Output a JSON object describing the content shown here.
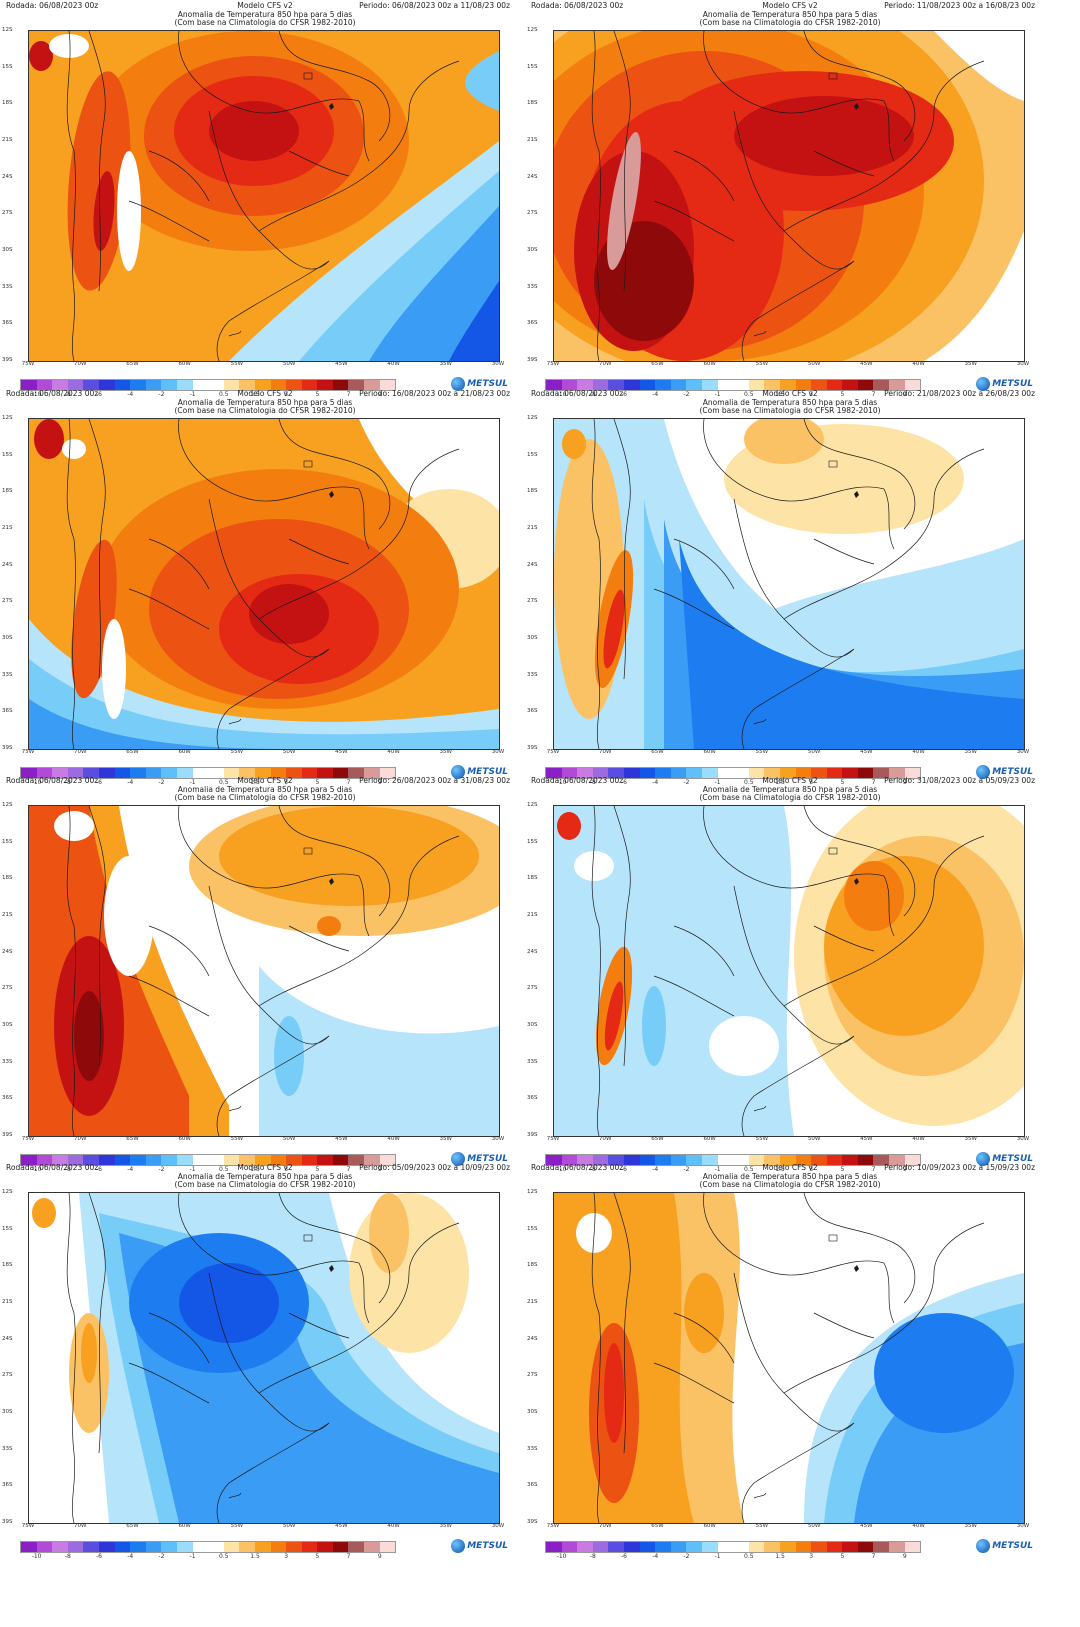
{
  "colorbar": {
    "ticks": [
      "-10",
      "-8",
      "-6",
      "-4",
      "-2",
      "-1",
      "0.5",
      "1.5",
      "3",
      "5",
      "7",
      "9"
    ],
    "colors": [
      "#8a1fc8",
      "#b24ad8",
      "#c87be3",
      "#9d6be0",
      "#5a4ee0",
      "#2e36d8",
      "#1456e6",
      "#1c7cf0",
      "#3a9cf4",
      "#5ec0fa",
      "#9adcfc",
      "#ffffff",
      "#ffffff",
      "#fde3a6",
      "#fbc265",
      "#f8a020",
      "#f47d10",
      "#ec5212",
      "#e42a14",
      "#c41212",
      "#8e0a0a",
      "#a85a5a",
      "#d99a9a",
      "#fbdada"
    ]
  },
  "lat_labels": [
    "12S",
    "15S",
    "18S",
    "21S",
    "24S",
    "27S",
    "30S",
    "33S",
    "36S",
    "39S"
  ],
  "lon_labels": [
    "75W",
    "70W",
    "65W",
    "60W",
    "55W",
    "50W",
    "45W",
    "40W",
    "35W",
    "30W"
  ],
  "brand": "METSUL",
  "panels": [
    {
      "rodada": "Rodada: 06/08/2023 00z",
      "modelo": "Modelo CFS v2",
      "periodo": "Periodo: 06/08/2023 00z a 11/08/23 00z",
      "title1": "Anomalia de Temperatura 850 hpa para 5 dias",
      "title2": "(Com base na Climatologia do CFSR 1982-2010)",
      "scenario": "warm-core"
    },
    {
      "rodada": "Rodada: 06/08/2023 00z",
      "modelo": "Modelo CFS v2",
      "periodo": "Periodo: 11/08/2023 00z a 16/08/23 00z",
      "title1": "Anomalia de Temperatura 850 hpa para 5 dias",
      "title2": "(Com base na Climatologia do CFSR 1982-2010)",
      "scenario": "very-warm"
    },
    {
      "rodada": "Rodada: 06/08/2023 00z",
      "modelo": "Modelo CFS v2",
      "periodo": "Periodo: 16/08/2023 00z a 21/08/23 00z",
      "title1": "Anomalia de Temperatura 850 hpa para 5 dias",
      "title2": "(Com base na Climatologia do CFSR 1982-2010)",
      "scenario": "warm-south"
    },
    {
      "rodada": "Rodada: 06/08/2023 00z",
      "modelo": "Modelo CFS v2",
      "periodo": "Periodo: 21/08/2023 00z a 26/08/23 00z",
      "title1": "Anomalia de Temperatura 850 hpa para 5 dias",
      "title2": "(Com base na Climatologia do CFSR 1982-2010)",
      "scenario": "cool-south"
    },
    {
      "rodada": "Rodada: 06/08/2023 00z",
      "modelo": "Modelo CFS v2",
      "periodo": "Periodo: 26/08/2023 00z a 31/08/23 00z",
      "title1": "Anomalia de Temperatura 850 hpa para 5 dias",
      "title2": "(Com base na Climatologia do CFSR 1982-2010)",
      "scenario": "warm-west"
    },
    {
      "rodada": "Rodada: 06/08/2023 00z",
      "modelo": "Modelo CFS v2",
      "periodo": "Periodo: 31/08/2023 00z a 05/09/23 00z",
      "title1": "Anomalia de Temperatura 850 hpa para 5 dias",
      "title2": "(Com base na Climatologia do CFSR 1982-2010)",
      "scenario": "mild-mix"
    },
    {
      "rodada": "Rodada: 06/08/2023 00z",
      "modelo": "Modelo CFS v2",
      "periodo": "Periodo: 05/09/2023 00z a 10/09/23 00z",
      "title1": "Anomalia de Temperatura 850 hpa para 5 dias",
      "title2": "(Com base na Climatologia do CFSR 1982-2010)",
      "scenario": "cool-center"
    },
    {
      "rodada": "Rodada: 06/08/2023 00z",
      "modelo": "Modelo CFS v2",
      "periodo": "Periodo: 10/09/2023 00z a 15/09/23 00z",
      "title1": "Anomalia de Temperatura 850 hpa para 5 dias",
      "title2": "(Com base na Climatologia do CFSR 1982-2010)",
      "scenario": "cool-east"
    }
  ]
}
